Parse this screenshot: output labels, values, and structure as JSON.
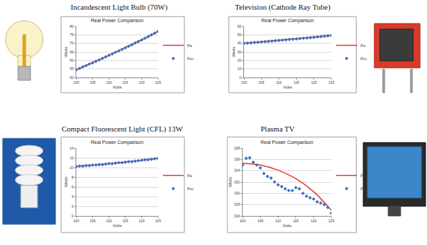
{
  "chart_data": [
    {
      "type": "line",
      "annotations": [
        "Incandescent Light Bulb (70W)"
      ],
      "title": "Real Power Comparison",
      "x_label": "Volts",
      "y_label": "Watts",
      "xlim": [
        100,
        125
      ],
      "xticks": [
        100,
        105,
        110,
        115,
        120,
        125
      ],
      "ylim": [
        50,
        80
      ],
      "yticks": [
        50,
        55,
        60,
        65,
        70,
        75,
        80
      ],
      "grid": true,
      "legend": "right",
      "series": [
        {
          "name": "Pe",
          "type": "line",
          "color": "#e0302c",
          "line_style": "solid",
          "x": [
            100,
            105,
            110,
            115,
            120,
            125
          ],
          "values": [
            54.6,
            58.7,
            63.0,
            67.5,
            72.1,
            77.0
          ]
        },
        {
          "name": "Pm",
          "type": "scatter",
          "color": "#3f6fc4",
          "marker": "diamond",
          "x": [
            100,
            101,
            102,
            103,
            104,
            105,
            106,
            107,
            108,
            109,
            110,
            111,
            112,
            113,
            114,
            115,
            116,
            117,
            118,
            119,
            120,
            121,
            122,
            123,
            124,
            125
          ],
          "values": [
            54.5,
            55.3,
            56.2,
            57.0,
            57.9,
            58.6,
            59.5,
            60.3,
            61.2,
            62.1,
            63.0,
            63.8,
            64.8,
            65.6,
            66.5,
            67.4,
            68.3,
            69.2,
            70.2,
            71.1,
            72.0,
            73.0,
            74.0,
            75.0,
            76.0,
            77.0
          ]
        }
      ]
    },
    {
      "type": "line",
      "annotations": [
        "Television (Cathode Ray Tube)"
      ],
      "title": "Real Power Comparison",
      "x_label": "Volts",
      "y_label": "Watts",
      "xlim": [
        100,
        125
      ],
      "xticks": [
        100,
        105,
        110,
        115,
        120,
        125
      ],
      "ylim": [
        0,
        60
      ],
      "yticks": [
        0,
        10,
        20,
        30,
        40,
        50,
        60
      ],
      "grid": true,
      "legend": "right",
      "series": [
        {
          "name": "Pe",
          "type": "line",
          "color": "#e0302c",
          "line_style": "solid",
          "x": [
            100,
            105,
            110,
            115,
            120,
            125
          ],
          "values": [
            40.3,
            42.0,
            43.8,
            45.6,
            47.5,
            49.6
          ]
        },
        {
          "name": "Pm",
          "type": "scatter",
          "color": "#3f6fc4",
          "marker": "diamond",
          "x": [
            100,
            101,
            102,
            103,
            104,
            105,
            106,
            107,
            108,
            109,
            110,
            111,
            112,
            113,
            114,
            115,
            116,
            117,
            118,
            119,
            120,
            121,
            122,
            123,
            124,
            125
          ],
          "values": [
            40.0,
            40.3,
            40.6,
            41.0,
            41.3,
            41.6,
            42.0,
            42.3,
            42.7,
            43.0,
            43.4,
            43.8,
            44.1,
            44.5,
            44.8,
            45.2,
            45.6,
            46.0,
            46.3,
            46.7,
            47.1,
            47.5,
            47.9,
            48.4,
            48.8,
            49.2
          ]
        }
      ]
    },
    {
      "type": "line",
      "annotations": [
        "Compact Fluorescent Light (CFL) 13W"
      ],
      "title": "Real Power Comparison",
      "x_label": "Volts",
      "y_label": "Watts",
      "xlim": [
        100,
        125
      ],
      "xticks": [
        100,
        105,
        110,
        115,
        120,
        125
      ],
      "ylim": [
        0,
        14
      ],
      "yticks": [
        0,
        2,
        4,
        6,
        8,
        10,
        12,
        14
      ],
      "grid": true,
      "legend": "right",
      "series": [
        {
          "name": "Pe",
          "type": "line",
          "color": "#e0302c",
          "line_style": "solid",
          "x": [
            100,
            105,
            110,
            115,
            120,
            125
          ],
          "values": [
            10.2,
            10.5,
            10.8,
            11.1,
            11.5,
            11.9
          ]
        },
        {
          "name": "Pm",
          "type": "scatter",
          "color": "#3f6fc4",
          "marker": "diamond",
          "x": [
            100,
            101,
            102,
            103,
            104,
            105,
            106,
            107,
            108,
            109,
            110,
            111,
            112,
            113,
            114,
            115,
            116,
            117,
            118,
            119,
            120,
            121,
            122,
            123,
            124,
            125
          ],
          "values": [
            10.2,
            10.3,
            10.3,
            10.4,
            10.4,
            10.5,
            10.5,
            10.6,
            10.6,
            10.7,
            10.8,
            10.8,
            10.9,
            11.0,
            11.0,
            11.1,
            11.2,
            11.2,
            11.3,
            11.4,
            11.5,
            11.6,
            11.6,
            11.7,
            11.8,
            11.9
          ]
        }
      ]
    },
    {
      "type": "line",
      "annotations": [
        "Plasma TV"
      ],
      "title": "Real Power Comparison",
      "x_label": "Volts",
      "y_label": "Watts",
      "xlim": [
        100,
        125
      ],
      "xticks": [
        100,
        105,
        110,
        115,
        120,
        125
      ],
      "ylim": [
        316,
        328
      ],
      "yticks": [
        316,
        318,
        320,
        322,
        324,
        326,
        328
      ],
      "grid": true,
      "legend": "right",
      "series": [
        {
          "name": "Pe",
          "type": "line",
          "color": "#e0302c",
          "line_style": "solid",
          "x": [
            100,
            105,
            110,
            115,
            120,
            125
          ],
          "values": [
            325.3,
            325.0,
            324.1,
            322.6,
            320.3,
            317.0
          ]
        },
        {
          "name": "Pm",
          "type": "scatter",
          "color": "#3f6fc4",
          "marker": "diamond",
          "x": [
            100,
            101,
            102,
            103,
            104,
            105,
            106,
            107,
            108,
            109,
            110,
            111,
            112,
            113,
            114,
            115,
            116,
            117,
            118,
            119,
            120,
            121,
            122,
            123,
            124,
            125
          ],
          "values": [
            325.0,
            326.2,
            326.3,
            325.5,
            325.0,
            324.5,
            323.5,
            323.0,
            322.7,
            322.0,
            321.5,
            321.2,
            320.8,
            320.5,
            320.5,
            321.0,
            320.8,
            320.0,
            319.5,
            319.2,
            319.0,
            318.5,
            318.3,
            318.0,
            317.5,
            316.5
          ]
        }
      ]
    }
  ]
}
